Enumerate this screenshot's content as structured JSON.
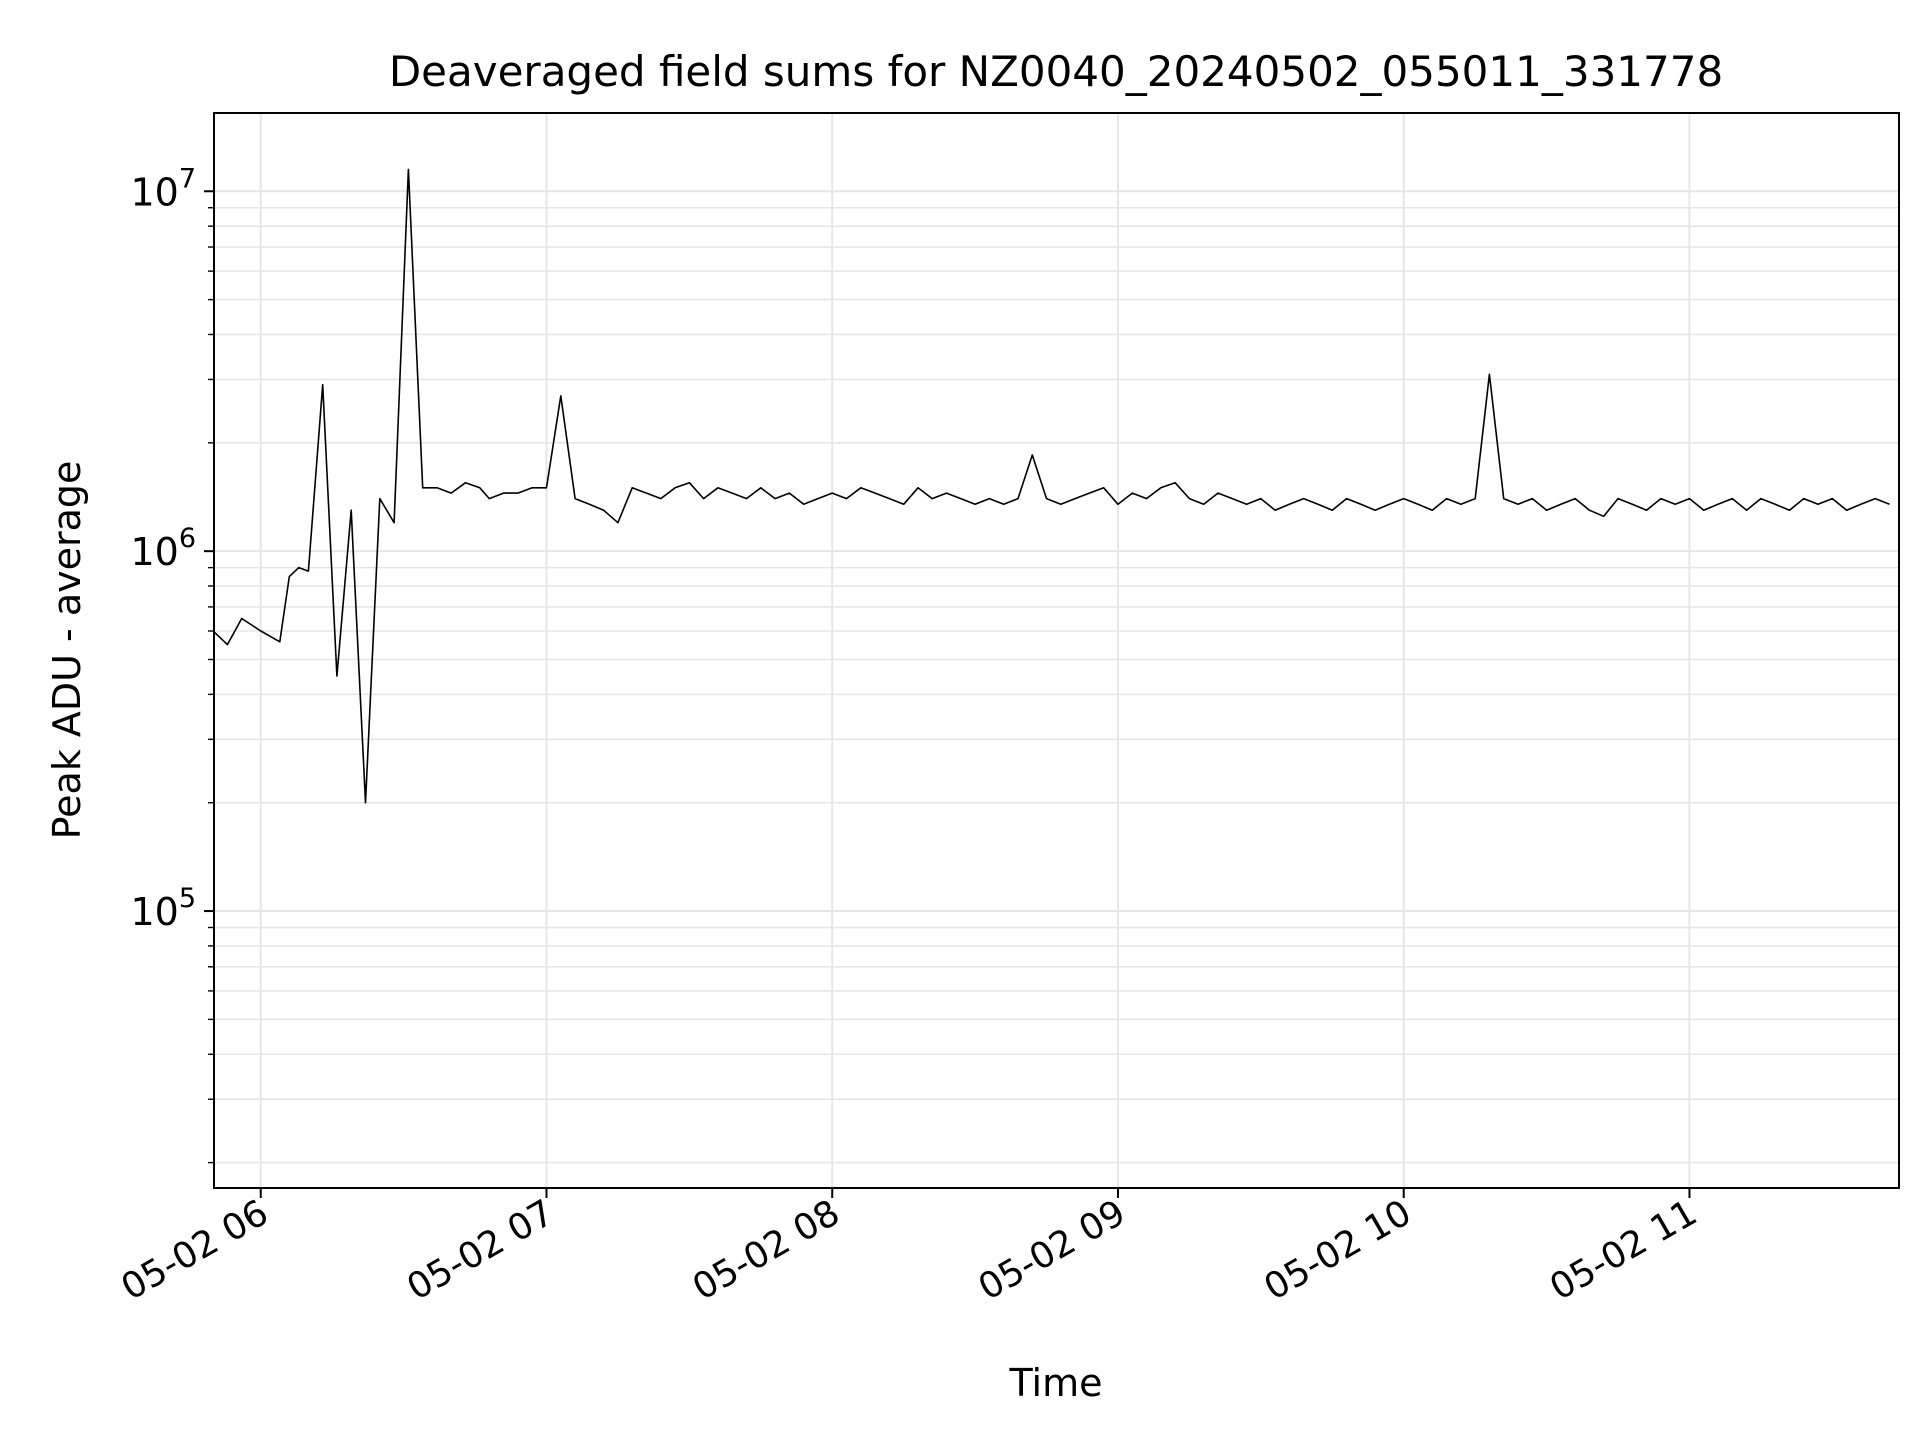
{
  "chart_data": {
    "type": "line",
    "title": "Deaveraged field sums for NZ0040_20240502_055011_331778",
    "xlabel": "Time",
    "ylabel": "Peak ADU - average",
    "yscale": "log",
    "ylim": [
      17000,
      16500000
    ],
    "xlim": [
      "2024-05-02 05:50:11",
      "2024-05-02 11:44:00"
    ],
    "grid": true,
    "line_color": "#000000",
    "x_ticks": [
      {
        "t": "2024-05-02 06:00",
        "label": "05-02 06"
      },
      {
        "t": "2024-05-02 07:00",
        "label": "05-02 07"
      },
      {
        "t": "2024-05-02 08:00",
        "label": "05-02 08"
      },
      {
        "t": "2024-05-02 09:00",
        "label": "05-02 09"
      },
      {
        "t": "2024-05-02 10:00",
        "label": "05-02 10"
      },
      {
        "t": "2024-05-02 11:00",
        "label": "05-02 11"
      }
    ],
    "y_ticks": [
      {
        "value": 100000,
        "base": "10",
        "exp": "5"
      },
      {
        "value": 1000000,
        "base": "10",
        "exp": "6"
      },
      {
        "value": 10000000,
        "base": "10",
        "exp": "7"
      }
    ],
    "series": [
      {
        "x": [
          "2024-05-02 05:50",
          "2024-05-02 05:53",
          "2024-05-02 05:56",
          "2024-05-02 06:00",
          "2024-05-02 06:04",
          "2024-05-02 06:06",
          "2024-05-02 06:08",
          "2024-05-02 06:10",
          "2024-05-02 06:13",
          "2024-05-02 06:16",
          "2024-05-02 06:19",
          "2024-05-02 06:22",
          "2024-05-02 06:25",
          "2024-05-02 06:28",
          "2024-05-02 06:31",
          "2024-05-02 06:34",
          "2024-05-02 06:37",
          "2024-05-02 06:40",
          "2024-05-02 06:43",
          "2024-05-02 06:46",
          "2024-05-02 06:48",
          "2024-05-02 06:51",
          "2024-05-02 06:54",
          "2024-05-02 06:57",
          "2024-05-02 07:00",
          "2024-05-02 07:03",
          "2024-05-02 07:06",
          "2024-05-02 07:09",
          "2024-05-02 07:12",
          "2024-05-02 07:15",
          "2024-05-02 07:18",
          "2024-05-02 07:21",
          "2024-05-02 07:24",
          "2024-05-02 07:27",
          "2024-05-02 07:30",
          "2024-05-02 07:33",
          "2024-05-02 07:36",
          "2024-05-02 07:39",
          "2024-05-02 07:42",
          "2024-05-02 07:45",
          "2024-05-02 07:48",
          "2024-05-02 07:51",
          "2024-05-02 07:54",
          "2024-05-02 07:57",
          "2024-05-02 08:00",
          "2024-05-02 08:03",
          "2024-05-02 08:06",
          "2024-05-02 08:09",
          "2024-05-02 08:12",
          "2024-05-02 08:15",
          "2024-05-02 08:18",
          "2024-05-02 08:21",
          "2024-05-02 08:24",
          "2024-05-02 08:27",
          "2024-05-02 08:30",
          "2024-05-02 08:33",
          "2024-05-02 08:36",
          "2024-05-02 08:39",
          "2024-05-02 08:42",
          "2024-05-02 08:45",
          "2024-05-02 08:48",
          "2024-05-02 08:51",
          "2024-05-02 08:54",
          "2024-05-02 08:57",
          "2024-05-02 09:00",
          "2024-05-02 09:03",
          "2024-05-02 09:06",
          "2024-05-02 09:09",
          "2024-05-02 09:12",
          "2024-05-02 09:15",
          "2024-05-02 09:18",
          "2024-05-02 09:21",
          "2024-05-02 09:24",
          "2024-05-02 09:27",
          "2024-05-02 09:30",
          "2024-05-02 09:33",
          "2024-05-02 09:36",
          "2024-05-02 09:39",
          "2024-05-02 09:42",
          "2024-05-02 09:45",
          "2024-05-02 09:48",
          "2024-05-02 09:51",
          "2024-05-02 09:54",
          "2024-05-02 09:57",
          "2024-05-02 10:00",
          "2024-05-02 10:03",
          "2024-05-02 10:06",
          "2024-05-02 10:09",
          "2024-05-02 10:12",
          "2024-05-02 10:15",
          "2024-05-02 10:18",
          "2024-05-02 10:21",
          "2024-05-02 10:24",
          "2024-05-02 10:27",
          "2024-05-02 10:30",
          "2024-05-02 10:33",
          "2024-05-02 10:36",
          "2024-05-02 10:39",
          "2024-05-02 10:42",
          "2024-05-02 10:45",
          "2024-05-02 10:48",
          "2024-05-02 10:51",
          "2024-05-02 10:54",
          "2024-05-02 10:57",
          "2024-05-02 11:00",
          "2024-05-02 11:03",
          "2024-05-02 11:06",
          "2024-05-02 11:09",
          "2024-05-02 11:12",
          "2024-05-02 11:15",
          "2024-05-02 11:18",
          "2024-05-02 11:21",
          "2024-05-02 11:24",
          "2024-05-02 11:27",
          "2024-05-02 11:30",
          "2024-05-02 11:33",
          "2024-05-02 11:36",
          "2024-05-02 11:39",
          "2024-05-02 11:42"
        ],
        "y": [
          600000,
          550000,
          650000,
          600000,
          560000,
          850000,
          900000,
          880000,
          2900000,
          450000,
          1300000,
          200000,
          1400000,
          1200000,
          11500000,
          1500000,
          1500000,
          1450000,
          1550000,
          1500000,
          1400000,
          1450000,
          1450000,
          1500000,
          1500000,
          2700000,
          1400000,
          1350000,
          1300000,
          1200000,
          1500000,
          1450000,
          1400000,
          1500000,
          1550000,
          1400000,
          1500000,
          1450000,
          1400000,
          1500000,
          1400000,
          1450000,
          1350000,
          1400000,
          1450000,
          1400000,
          1500000,
          1450000,
          1400000,
          1350000,
          1500000,
          1400000,
          1450000,
          1400000,
          1350000,
          1400000,
          1350000,
          1400000,
          1850000,
          1400000,
          1350000,
          1400000,
          1450000,
          1500000,
          1350000,
          1450000,
          1400000,
          1500000,
          1550000,
          1400000,
          1350000,
          1450000,
          1400000,
          1350000,
          1400000,
          1300000,
          1350000,
          1400000,
          1350000,
          1300000,
          1400000,
          1350000,
          1300000,
          1350000,
          1400000,
          1350000,
          1300000,
          1400000,
          1350000,
          1400000,
          3100000,
          1400000,
          1350000,
          1400000,
          1300000,
          1350000,
          1400000,
          1300000,
          1250000,
          1400000,
          1350000,
          1300000,
          1400000,
          1350000,
          1400000,
          1300000,
          1350000,
          1400000,
          1300000,
          1400000,
          1350000,
          1300000,
          1400000,
          1350000,
          1400000,
          1300000,
          1350000,
          1400000,
          1350000
        ]
      }
    ]
  }
}
